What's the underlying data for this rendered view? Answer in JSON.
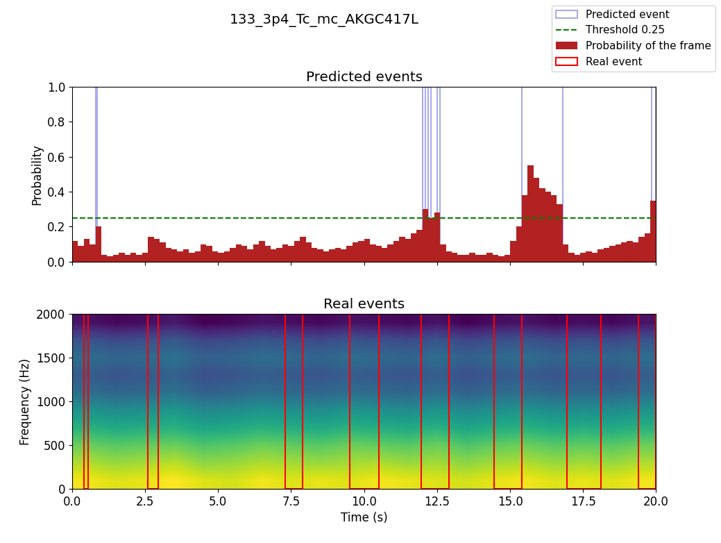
{
  "title": "133_3p4_Tc_mc_AKGC417L",
  "chart_data": [
    {
      "type": "bar",
      "title": "Predicted events",
      "y_label": "Probability",
      "xlim": [
        0,
        20
      ],
      "ylim": [
        0,
        1
      ],
      "xticks": [
        0.0,
        2.5,
        5.0,
        7.5,
        10.0,
        12.5,
        15.0,
        17.5,
        20.0
      ],
      "yticks": [
        0.0,
        0.2,
        0.4,
        0.6,
        0.8,
        1.0
      ],
      "tick_labels": "y",
      "legend": "upper right",
      "series": [
        {
          "name": "Predicted event",
          "type": "span",
          "color": "#aaaaee",
          "intervals": [
            [
              0.8,
              0.85
            ],
            [
              12.0,
              12.1
            ],
            [
              12.2,
              12.3
            ],
            [
              12.5,
              12.6
            ],
            [
              15.4,
              16.8
            ],
            [
              19.85,
              20.0
            ]
          ]
        },
        {
          "name": "Threshold 0.25",
          "type": "line",
          "color": "green",
          "line_style": "dashed",
          "value": 0.25
        },
        {
          "name": "Probability of the frame",
          "type": "bar",
          "color": "#b22222",
          "x": [
            0.0,
            0.2,
            0.4,
            0.6,
            0.8,
            1.0,
            1.2,
            1.4,
            1.6,
            1.8,
            2.0,
            2.2,
            2.4,
            2.6,
            2.8,
            3.0,
            3.2,
            3.4,
            3.6,
            3.8,
            4.0,
            4.2,
            4.4,
            4.6,
            4.8,
            5.0,
            5.2,
            5.4,
            5.6,
            5.8,
            6.0,
            6.2,
            6.4,
            6.6,
            6.8,
            7.0,
            7.2,
            7.4,
            7.6,
            7.8,
            8.0,
            8.2,
            8.4,
            8.6,
            8.8,
            9.0,
            9.2,
            9.4,
            9.6,
            9.8,
            10.0,
            10.2,
            10.4,
            10.6,
            10.8,
            11.0,
            11.2,
            11.4,
            11.6,
            11.8,
            12.0,
            12.2,
            12.4,
            12.6,
            12.8,
            13.0,
            13.2,
            13.4,
            13.6,
            13.8,
            14.0,
            14.2,
            14.4,
            14.6,
            14.8,
            15.0,
            15.2,
            15.4,
            15.6,
            15.8,
            16.0,
            16.2,
            16.4,
            16.6,
            16.8,
            17.0,
            17.2,
            17.4,
            17.6,
            17.8,
            18.0,
            18.2,
            18.4,
            18.6,
            18.8,
            19.0,
            19.2,
            19.4,
            19.6,
            19.8
          ],
          "values": [
            0.12,
            0.09,
            0.13,
            0.1,
            0.2,
            0.04,
            0.03,
            0.04,
            0.05,
            0.04,
            0.05,
            0.04,
            0.05,
            0.14,
            0.13,
            0.11,
            0.08,
            0.07,
            0.06,
            0.07,
            0.05,
            0.06,
            0.1,
            0.09,
            0.06,
            0.05,
            0.06,
            0.08,
            0.1,
            0.09,
            0.07,
            0.1,
            0.12,
            0.09,
            0.07,
            0.08,
            0.1,
            0.09,
            0.12,
            0.14,
            0.11,
            0.08,
            0.07,
            0.06,
            0.07,
            0.08,
            0.07,
            0.09,
            0.11,
            0.12,
            0.13,
            0.1,
            0.09,
            0.08,
            0.1,
            0.12,
            0.14,
            0.13,
            0.16,
            0.18,
            0.3,
            0.25,
            0.28,
            0.1,
            0.06,
            0.05,
            0.04,
            0.04,
            0.05,
            0.04,
            0.04,
            0.05,
            0.04,
            0.03,
            0.04,
            0.12,
            0.2,
            0.38,
            0.55,
            0.48,
            0.42,
            0.4,
            0.38,
            0.33,
            0.1,
            0.05,
            0.04,
            0.05,
            0.06,
            0.05,
            0.07,
            0.08,
            0.09,
            0.1,
            0.11,
            0.12,
            0.11,
            0.14,
            0.16,
            0.35
          ]
        }
      ]
    },
    {
      "type": "heatmap",
      "title": "Real events",
      "x_label": "Time (s)",
      "y_label": "Frequency (Hz)",
      "xlim": [
        0,
        20
      ],
      "ylim": [
        0,
        2000
      ],
      "xticks": [
        0.0,
        2.5,
        5.0,
        7.5,
        10.0,
        12.5,
        15.0,
        17.5,
        20.0
      ],
      "yticks": [
        0,
        500,
        1000,
        1500,
        2000
      ],
      "color": "viridis",
      "cells": [
        [
          0.92,
          0.9,
          0.91,
          0.93,
          0.9,
          0.89,
          0.92,
          0.9,
          0.91,
          0.9,
          0.92,
          0.91,
          0.9,
          0.89,
          0.91,
          0.92,
          0.9,
          0.91,
          0.9,
          0.92
        ],
        [
          0.86,
          0.84,
          0.85,
          0.87,
          0.83,
          0.84,
          0.86,
          0.85,
          0.84,
          0.85,
          0.86,
          0.84,
          0.85,
          0.83,
          0.85,
          0.86,
          0.84,
          0.85,
          0.84,
          0.86
        ],
        [
          0.8,
          0.78,
          0.79,
          0.8,
          0.77,
          0.78,
          0.8,
          0.79,
          0.78,
          0.8,
          0.79,
          0.78,
          0.8,
          0.77,
          0.79,
          0.8,
          0.78,
          0.79,
          0.78,
          0.8
        ],
        [
          0.72,
          0.7,
          0.71,
          0.72,
          0.69,
          0.7,
          0.72,
          0.71,
          0.7,
          0.72,
          0.71,
          0.7,
          0.72,
          0.69,
          0.71,
          0.72,
          0.7,
          0.71,
          0.7,
          0.72
        ],
        [
          0.65,
          0.63,
          0.64,
          0.66,
          0.62,
          0.63,
          0.65,
          0.64,
          0.63,
          0.65,
          0.64,
          0.63,
          0.65,
          0.62,
          0.64,
          0.65,
          0.63,
          0.64,
          0.63,
          0.65
        ],
        [
          0.56,
          0.54,
          0.55,
          0.57,
          0.53,
          0.54,
          0.56,
          0.55,
          0.54,
          0.56,
          0.55,
          0.54,
          0.56,
          0.53,
          0.55,
          0.56,
          0.54,
          0.55,
          0.54,
          0.56
        ],
        [
          0.52,
          0.5,
          0.51,
          0.53,
          0.49,
          0.5,
          0.52,
          0.51,
          0.5,
          0.52,
          0.51,
          0.5,
          0.52,
          0.49,
          0.51,
          0.52,
          0.5,
          0.51,
          0.5,
          0.52
        ],
        [
          0.56,
          0.54,
          0.55,
          0.57,
          0.53,
          0.54,
          0.56,
          0.55,
          0.54,
          0.56,
          0.55,
          0.54,
          0.56,
          0.53,
          0.55,
          0.56,
          0.54,
          0.55,
          0.54,
          0.56
        ],
        [
          0.5,
          0.48,
          0.49,
          0.51,
          0.47,
          0.48,
          0.5,
          0.49,
          0.48,
          0.5,
          0.49,
          0.48,
          0.5,
          0.47,
          0.49,
          0.5,
          0.48,
          0.49,
          0.48,
          0.5
        ],
        [
          0.38,
          0.36,
          0.37,
          0.39,
          0.35,
          0.36,
          0.38,
          0.37,
          0.36,
          0.38,
          0.37,
          0.36,
          0.38,
          0.35,
          0.37,
          0.38,
          0.36,
          0.37,
          0.36,
          0.38
        ]
      ],
      "series": [
        {
          "name": "Real event",
          "type": "span",
          "color": "red",
          "intervals": [
            [
              0.4,
              0.55
            ],
            [
              2.6,
              2.95
            ],
            [
              7.3,
              7.9
            ],
            [
              9.5,
              10.5
            ],
            [
              11.95,
              12.9
            ],
            [
              14.45,
              15.4
            ],
            [
              16.95,
              18.1
            ],
            [
              19.4,
              20.0
            ]
          ]
        }
      ]
    }
  ]
}
